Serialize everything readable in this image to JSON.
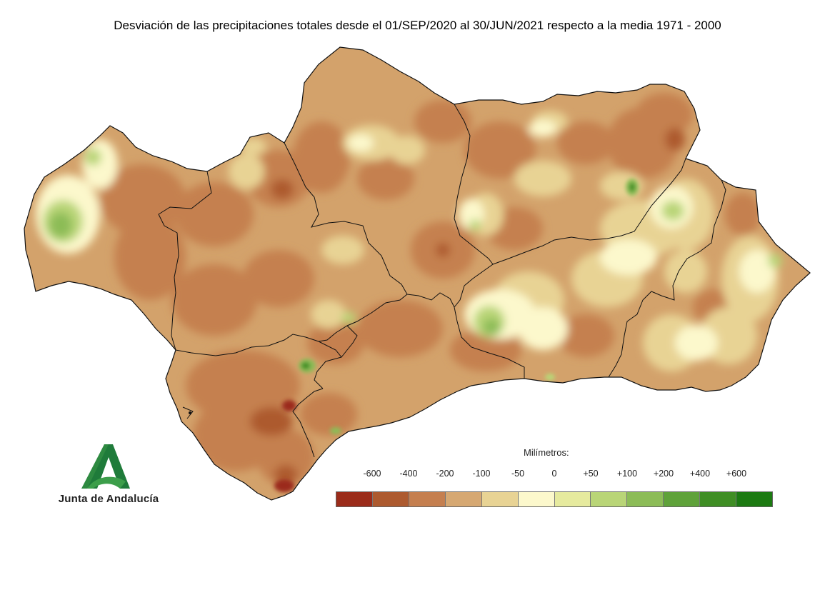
{
  "title": "Desviación de las precipitaciones totales desde el 01/SEP/2020 al 30/JUN/2021 respecto a la media 1971 - 2000",
  "legend": {
    "unit_label": "Milímetros:",
    "ticks": [
      "-600",
      "-400",
      "-200",
      "-100",
      "-50",
      "0",
      "+50",
      "+100",
      "+200",
      "+400",
      "+600"
    ],
    "colors": [
      "#9b2c1a",
      "#ad5a2f",
      "#c57f4f",
      "#d6a872",
      "#e8d394",
      "#fcf8cc",
      "#e6ea9e",
      "#b9d577",
      "#8cbc57",
      "#5fa23a",
      "#3f8e24",
      "#1c7a12"
    ]
  },
  "logo": {
    "text": "Junta de Andalucía",
    "colors": [
      "#1f7b3a",
      "#3c9e4a"
    ]
  },
  "map": {
    "region": "Andalucía",
    "base_color": "#d6a872",
    "border_color": "#111111"
  }
}
